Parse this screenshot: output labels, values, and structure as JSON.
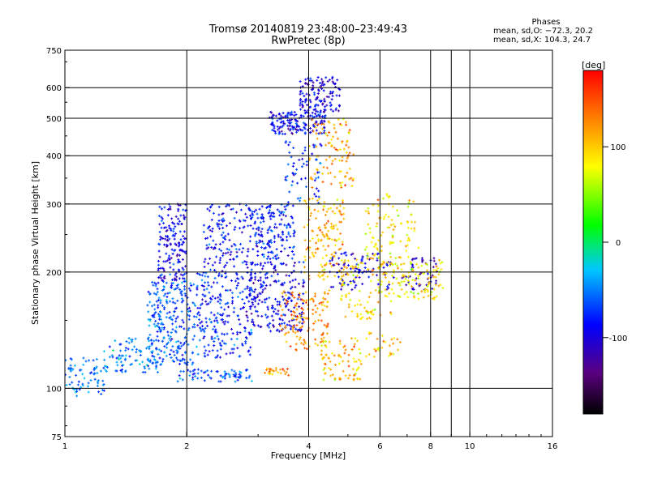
{
  "header": {
    "title_line1": "Tromsø 20140819 23:48:00–23:49:43",
    "title_line2": "RwPretec (8p)"
  },
  "phase_box": {
    "heading": "Phases",
    "line_o": "mean, sd,O: −72.3, 20.2",
    "line_x": "mean, sd,X: 104.3, 24.7"
  },
  "chart_data": {
    "type": "scatter",
    "xlabel": "Frequency [MHz]",
    "ylabel": "Stationary phase Virtual Height [km]",
    "x_scale": "log",
    "y_scale": "log",
    "xlim": [
      1,
      16
    ],
    "ylim": [
      75,
      750
    ],
    "x_ticks": [
      1,
      2,
      4,
      6,
      8,
      10,
      16
    ],
    "x_tick_labels": [
      "1",
      "2",
      "4",
      "6",
      "8",
      "10",
      "16"
    ],
    "x_gridlines": [
      2,
      4,
      6,
      8,
      9,
      10
    ],
    "y_ticks": [
      75,
      100,
      200,
      300,
      400,
      500,
      600,
      750
    ],
    "y_tick_labels": [
      "75",
      "100",
      "200",
      "300",
      "400",
      "500",
      "600",
      "750"
    ],
    "y_gridlines": [
      100,
      200,
      300,
      400,
      500,
      600
    ],
    "grid": true,
    "colorbar": {
      "label": "[deg]",
      "range": [
        -180,
        180
      ],
      "ticks": [
        100,
        0,
        -100
      ],
      "tick_labels": [
        "100",
        "0",
        "-100"
      ],
      "colormap": [
        "#000000",
        "#5a0080",
        "#0000ff",
        "#00c8ff",
        "#00ff00",
        "#ffff00",
        "#ff8000",
        "#ff0000"
      ]
    },
    "series": [
      {
        "mode": "O",
        "phase_mean": -72.3,
        "phase_sd": 20.2,
        "clusters": [
          {
            "f": [
              1.0,
              1.25
            ],
            "h": [
              95,
              120
            ],
            "phase": -55,
            "n": 70
          },
          {
            "f": [
              1.25,
              1.7
            ],
            "h": [
              110,
              135
            ],
            "phase": -50,
            "n": 90
          },
          {
            "f": [
              1.6,
              2.1
            ],
            "h": [
              115,
              190
            ],
            "phase": -62,
            "n": 260
          },
          {
            "f": [
              1.7,
              2.0
            ],
            "h": [
              190,
              300
            ],
            "phase": -95,
            "n": 170
          },
          {
            "f": [
              1.9,
              2.9
            ],
            "h": [
              104,
              112
            ],
            "phase": -60,
            "n": 70
          },
          {
            "f": [
              2.1,
              2.9
            ],
            "h": [
              120,
              200
            ],
            "phase": -75,
            "n": 230
          },
          {
            "f": [
              2.2,
              2.9
            ],
            "h": [
              200,
              300
            ],
            "phase": -85,
            "n": 140
          },
          {
            "f": [
              2.8,
              3.9
            ],
            "h": [
              140,
              215
            ],
            "phase": -92,
            "n": 230
          },
          {
            "f": [
              2.9,
              3.7
            ],
            "h": [
              215,
              300
            ],
            "phase": -80,
            "n": 160
          },
          {
            "f": [
              3.2,
              4.4
            ],
            "h": [
              455,
              520
            ],
            "phase": -90,
            "n": 170
          },
          {
            "f": [
              3.8,
              4.8
            ],
            "h": [
              520,
              640
            ],
            "phase": -100,
            "n": 120
          },
          {
            "f": [
              3.5,
              4.3
            ],
            "h": [
              300,
              450
            ],
            "phase": -75,
            "n": 60
          },
          {
            "f": [
              4.5,
              6.5
            ],
            "h": [
              180,
              225
            ],
            "phase": -95,
            "n": 90
          },
          {
            "f": [
              6.8,
              8.3
            ],
            "h": [
              180,
              220
            ],
            "phase": -115,
            "n": 50
          }
        ]
      },
      {
        "mode": "X",
        "phase_mean": 104.3,
        "phase_sd": 24.7,
        "clusters": [
          {
            "f": [
              3.1,
              3.6
            ],
            "h": [
              108,
              113
            ],
            "phase": 125,
            "n": 25
          },
          {
            "f": [
              3.4,
              4.5
            ],
            "h": [
              125,
              180
            ],
            "phase": 130,
            "n": 130
          },
          {
            "f": [
              3.9,
              4.9
            ],
            "h": [
              190,
              310
            ],
            "phase": 110,
            "n": 150
          },
          {
            "f": [
              4.0,
              5.2
            ],
            "h": [
              330,
              500
            ],
            "phase": 115,
            "n": 100
          },
          {
            "f": [
              4.3,
              5.4
            ],
            "h": [
              105,
              135
            ],
            "phase": 100,
            "n": 80
          },
          {
            "f": [
              4.8,
              6.4
            ],
            "h": [
              150,
              215
            ],
            "phase": 95,
            "n": 110
          },
          {
            "f": [
              5.5,
              7.5
            ],
            "h": [
              215,
              320
            ],
            "phase": 90,
            "n": 100
          },
          {
            "f": [
              6.4,
              8.6
            ],
            "h": [
              170,
              215
            ],
            "phase": 85,
            "n": 100
          },
          {
            "f": [
              5.5,
              6.8
            ],
            "h": [
              120,
              140
            ],
            "phase": 100,
            "n": 30
          }
        ]
      }
    ]
  }
}
